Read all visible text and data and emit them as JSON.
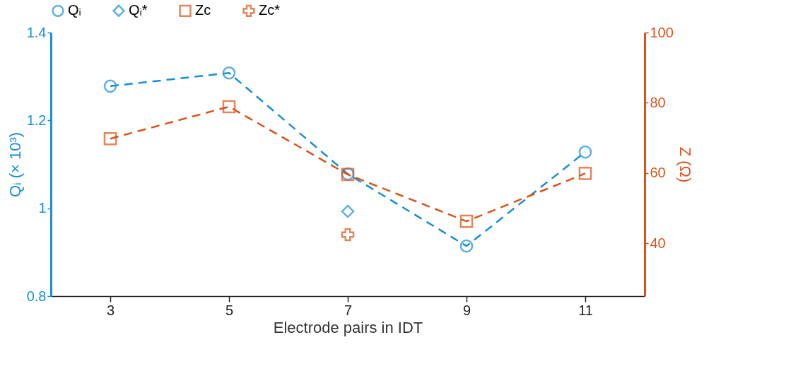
{
  "chart_data": {
    "type": "line",
    "xlabel": "Electrode pairs in IDT",
    "ylabel": "Qᵢ (× 10³)",
    "y2label": "Z (Ω)",
    "x": [
      3,
      5,
      7,
      9,
      11
    ],
    "xlim": [
      2,
      12
    ],
    "xticks": [
      3,
      5,
      7,
      9,
      11
    ],
    "ylim": [
      0.8,
      1.4
    ],
    "yticks": [
      0.8,
      1,
      1.2,
      1.4
    ],
    "y2lim": [
      25,
      100
    ],
    "y2ticks": [
      40,
      60,
      80,
      100
    ],
    "legend": "top",
    "grid": false,
    "series": [
      {
        "name": "Qᵢ",
        "color": "#1a8fd6",
        "marker": "circle",
        "line_style": "dashed",
        "values": [
          1.278,
          1.308,
          1.078,
          0.914,
          1.128
        ]
      },
      {
        "name": "Qᵢ*",
        "type": "scatter",
        "color": "#1a8fd6",
        "marker": "diamond",
        "x": [
          7
        ],
        "values": [
          0.993
        ]
      },
      {
        "name": "Zc",
        "axis": "y2",
        "color": "#d95319",
        "marker": "square",
        "line_style": "dashed",
        "values": [
          69.8,
          78.9,
          59.6,
          46.3,
          59.9
        ]
      },
      {
        "name": "Zc*",
        "type": "scatter",
        "axis": "y2",
        "color": "#d95319",
        "marker": "cross",
        "x": [
          7
        ],
        "values": [
          42.5
        ]
      }
    ]
  }
}
